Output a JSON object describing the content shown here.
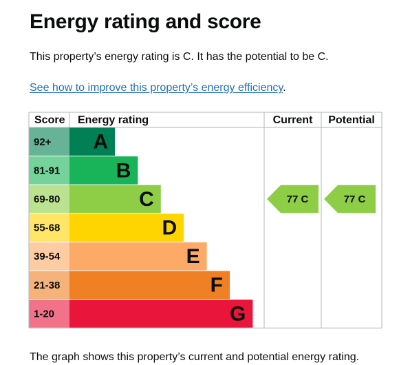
{
  "page": {
    "heading": "Energy rating and score",
    "intro": "This property’s energy rating is C. It has the potential to be C.",
    "link_text": "See how to improve this property’s energy efficiency",
    "link_suffix": ".",
    "footer": "The graph shows this property’s current and potential energy rating."
  },
  "chart_data": {
    "type": "bar",
    "headers": {
      "score": "Score",
      "rating": "Energy rating",
      "current": "Current",
      "potential": "Potential"
    },
    "bands": [
      {
        "score": "92+",
        "letter": "A",
        "color": "#008054",
        "score_bg": "#66b398"
      },
      {
        "score": "81-91",
        "letter": "B",
        "color": "#19b459",
        "score_bg": "#75d29b"
      },
      {
        "score": "69-80",
        "letter": "C",
        "color": "#8dce46",
        "score_bg": "#bbe290"
      },
      {
        "score": "55-68",
        "letter": "D",
        "color": "#ffd500",
        "score_bg": "#ffe666"
      },
      {
        "score": "39-54",
        "letter": "E",
        "color": "#fcaa65",
        "score_bg": "#fdcca3"
      },
      {
        "score": "21-38",
        "letter": "F",
        "color": "#ef8023",
        "score_bg": "#f5b37b"
      },
      {
        "score": "1-20",
        "letter": "G",
        "color": "#e9153b",
        "score_bg": "#f27389"
      }
    ],
    "current": {
      "score": 77,
      "letter": "C",
      "label": "77 C",
      "color": "#8dce46"
    },
    "potential": {
      "score": 77,
      "letter": "C",
      "label": "77 C",
      "color": "#8dce46"
    }
  }
}
